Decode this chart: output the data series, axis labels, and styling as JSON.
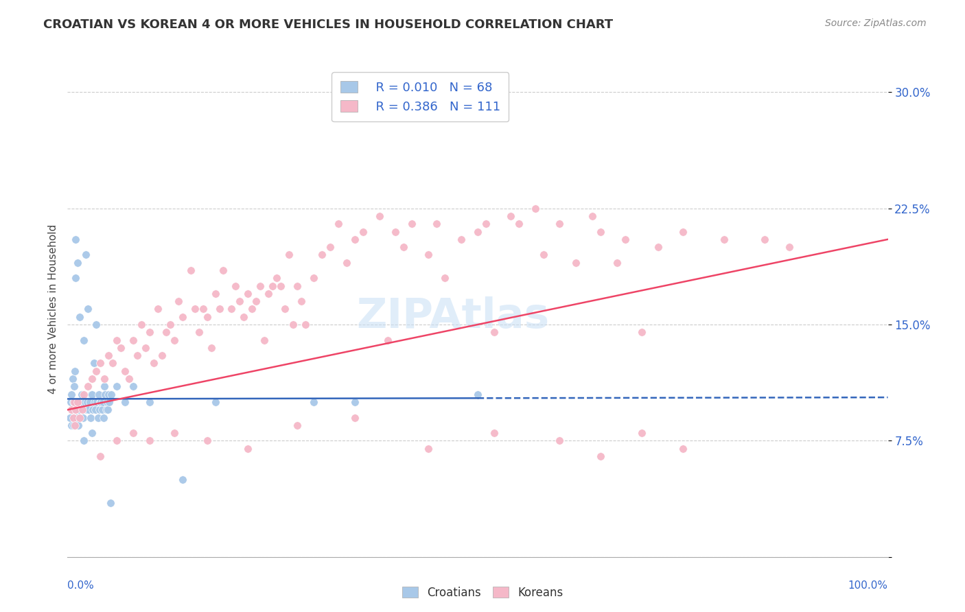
{
  "title": "CROATIAN VS KOREAN 4 OR MORE VEHICLES IN HOUSEHOLD CORRELATION CHART",
  "source": "Source: ZipAtlas.com",
  "ylabel": "4 or more Vehicles in Household",
  "xlim": [
    0.0,
    100.0
  ],
  "ylim": [
    0.0,
    32.0
  ],
  "yticks": [
    0.0,
    7.5,
    15.0,
    22.5,
    30.0
  ],
  "ytick_labels": [
    "",
    "7.5%",
    "15.0%",
    "22.5%",
    "30.0%"
  ],
  "croatian_color": "#a8c8e8",
  "korean_color": "#f5b8c8",
  "trendline_croatian_color": "#3366bb",
  "trendline_korean_color": "#ee4466",
  "watermark": "ZIPAtlas",
  "croatian_r": 0.01,
  "croatian_n": 68,
  "korean_r": 0.386,
  "korean_n": 111,
  "legend_text_color": "#3366cc",
  "croatian_scatter_x": [
    0.3,
    0.4,
    0.5,
    0.5,
    0.6,
    0.6,
    0.7,
    0.7,
    0.8,
    0.8,
    0.9,
    0.9,
    1.0,
    1.0,
    1.1,
    1.2,
    1.3,
    1.4,
    1.5,
    1.6,
    1.7,
    1.8,
    1.9,
    2.0,
    2.1,
    2.2,
    2.3,
    2.4,
    2.5,
    2.6,
    2.7,
    2.8,
    2.9,
    3.0,
    3.1,
    3.2,
    3.3,
    3.4,
    3.5,
    3.6,
    3.7,
    3.8,
    3.9,
    4.0,
    4.1,
    4.2,
    4.3,
    4.4,
    4.5,
    4.6,
    4.7,
    4.8,
    4.9,
    5.0,
    5.1,
    5.2,
    5.3,
    6.0,
    7.0,
    8.0,
    10.0,
    14.0,
    18.0,
    30.0,
    35.0,
    50.0,
    2.0,
    3.0
  ],
  "croatian_scatter_y": [
    9.0,
    10.0,
    8.5,
    10.5,
    9.5,
    11.5,
    8.5,
    10.0,
    9.5,
    11.0,
    10.0,
    12.0,
    18.0,
    20.5,
    9.0,
    19.0,
    8.5,
    9.5,
    15.5,
    10.0,
    10.5,
    10.0,
    9.0,
    14.0,
    10.0,
    19.5,
    9.5,
    10.0,
    16.0,
    9.5,
    10.0,
    9.0,
    10.5,
    10.5,
    9.5,
    12.5,
    10.0,
    9.5,
    15.0,
    10.0,
    9.0,
    10.5,
    9.5,
    10.0,
    10.0,
    9.5,
    10.0,
    9.0,
    11.0,
    10.5,
    9.5,
    10.0,
    9.5,
    10.5,
    10.0,
    3.5,
    10.5,
    11.0,
    10.0,
    11.0,
    10.0,
    5.0,
    10.0,
    10.0,
    10.0,
    10.5,
    7.5,
    8.0
  ],
  "korean_scatter_x": [
    0.5,
    0.7,
    0.8,
    0.9,
    1.0,
    1.2,
    1.5,
    1.8,
    2.0,
    2.5,
    3.0,
    3.5,
    4.0,
    4.5,
    5.0,
    5.5,
    6.0,
    6.5,
    7.0,
    7.5,
    8.0,
    8.5,
    9.0,
    9.5,
    10.0,
    10.5,
    11.0,
    11.5,
    12.0,
    12.5,
    13.0,
    13.5,
    14.0,
    15.0,
    15.5,
    16.0,
    16.5,
    17.0,
    17.5,
    18.0,
    18.5,
    19.0,
    20.0,
    20.5,
    21.0,
    21.5,
    22.0,
    22.5,
    23.0,
    23.5,
    24.0,
    24.5,
    25.0,
    25.5,
    26.0,
    26.5,
    27.0,
    27.5,
    28.0,
    28.5,
    29.0,
    30.0,
    31.0,
    32.0,
    33.0,
    34.0,
    35.0,
    36.0,
    38.0,
    39.0,
    40.0,
    41.0,
    42.0,
    44.0,
    45.0,
    46.0,
    48.0,
    50.0,
    51.0,
    52.0,
    54.0,
    55.0,
    57.0,
    58.0,
    60.0,
    62.0,
    64.0,
    65.0,
    67.0,
    68.0,
    70.0,
    72.0,
    75.0,
    80.0,
    85.0,
    88.0,
    4.0,
    6.0,
    8.0,
    10.0,
    13.0,
    17.0,
    22.0,
    28.0,
    35.0,
    44.0,
    52.0,
    60.0,
    65.0,
    70.0,
    75.0
  ],
  "korean_scatter_y": [
    9.5,
    9.0,
    10.0,
    8.5,
    9.5,
    10.0,
    9.0,
    9.5,
    10.5,
    11.0,
    11.5,
    12.0,
    12.5,
    11.5,
    13.0,
    12.5,
    14.0,
    13.5,
    12.0,
    11.5,
    14.0,
    13.0,
    15.0,
    13.5,
    14.5,
    12.5,
    16.0,
    13.0,
    14.5,
    15.0,
    14.0,
    16.5,
    15.5,
    18.5,
    16.0,
    14.5,
    16.0,
    15.5,
    13.5,
    17.0,
    16.0,
    18.5,
    16.0,
    17.5,
    16.5,
    15.5,
    17.0,
    16.0,
    16.5,
    17.5,
    14.0,
    17.0,
    17.5,
    18.0,
    17.5,
    16.0,
    19.5,
    15.0,
    17.5,
    16.5,
    15.0,
    18.0,
    19.5,
    20.0,
    21.5,
    19.0,
    20.5,
    21.0,
    22.0,
    14.0,
    21.0,
    20.0,
    21.5,
    19.5,
    21.5,
    18.0,
    20.5,
    21.0,
    21.5,
    14.5,
    22.0,
    21.5,
    22.5,
    19.5,
    21.5,
    19.0,
    22.0,
    21.0,
    19.0,
    20.5,
    14.5,
    20.0,
    21.0,
    20.5,
    20.5,
    20.0,
    6.5,
    7.5,
    8.0,
    7.5,
    8.0,
    7.5,
    7.0,
    8.5,
    9.0,
    7.0,
    8.0,
    7.5,
    6.5,
    8.0,
    7.0
  ],
  "croatian_trendline": [
    10.2,
    10.3
  ],
  "korean_trendline": [
    9.5,
    20.5
  ],
  "trendline_x": [
    0.0,
    100.0
  ],
  "croatian_solid_end_x": 50.0
}
